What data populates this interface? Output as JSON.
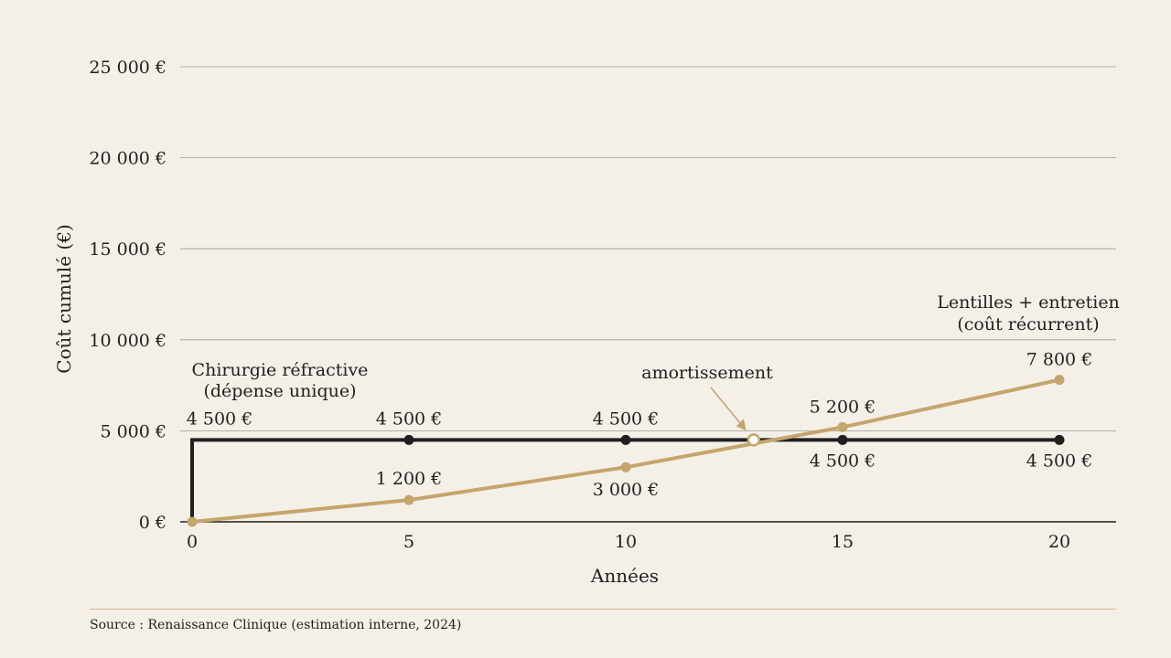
{
  "chart_data": {
    "type": "line",
    "x": [
      0,
      5,
      10,
      15,
      20
    ],
    "xlabel": "Années",
    "ylabel": "Coût cumulé (€)",
    "xlim": [
      0,
      20
    ],
    "ylim": [
      0,
      25000
    ],
    "x_ticks": [
      "0",
      "5",
      "10",
      "15",
      "20"
    ],
    "y_ticks": [
      {
        "value": 0,
        "label": "0 €"
      },
      {
        "value": 5000,
        "label": "5 000 €"
      },
      {
        "value": 10000,
        "label": "10 000 €"
      },
      {
        "value": 15000,
        "label": "15 000 €"
      },
      {
        "value": 20000,
        "label": "20 000 €"
      },
      {
        "value": 25000,
        "label": "25 000 €"
      }
    ],
    "grid": true,
    "series": [
      {
        "name": "Chirurgie réfractive (dépense unique)",
        "name_lines": [
          "Chirurgie réfractive",
          "(dépense unique)"
        ],
        "color": "#1f1f1f",
        "values": [
          4500,
          4500,
          4500,
          4500,
          4500
        ],
        "labels": [
          "4 500 €",
          "4 500 €",
          "4 500 €",
          "4 500 €",
          "4 500 €"
        ]
      },
      {
        "name": "Lentilles + entretien (coût récurrent)",
        "name_lines": [
          "Lentilles + entretien",
          "(coût récurrent)"
        ],
        "color": "#c4a56c",
        "values": [
          0,
          1200,
          3000,
          5200,
          7800
        ],
        "labels": [
          "",
          "1 200 €",
          "3 000 €",
          "5 200 €",
          "7 800 €"
        ]
      }
    ],
    "breakeven": {
      "label": "amortissement",
      "x": 12.95,
      "y": 4500
    }
  },
  "source": "Source : Renaissance Clinique (estimation interne, 2024)"
}
